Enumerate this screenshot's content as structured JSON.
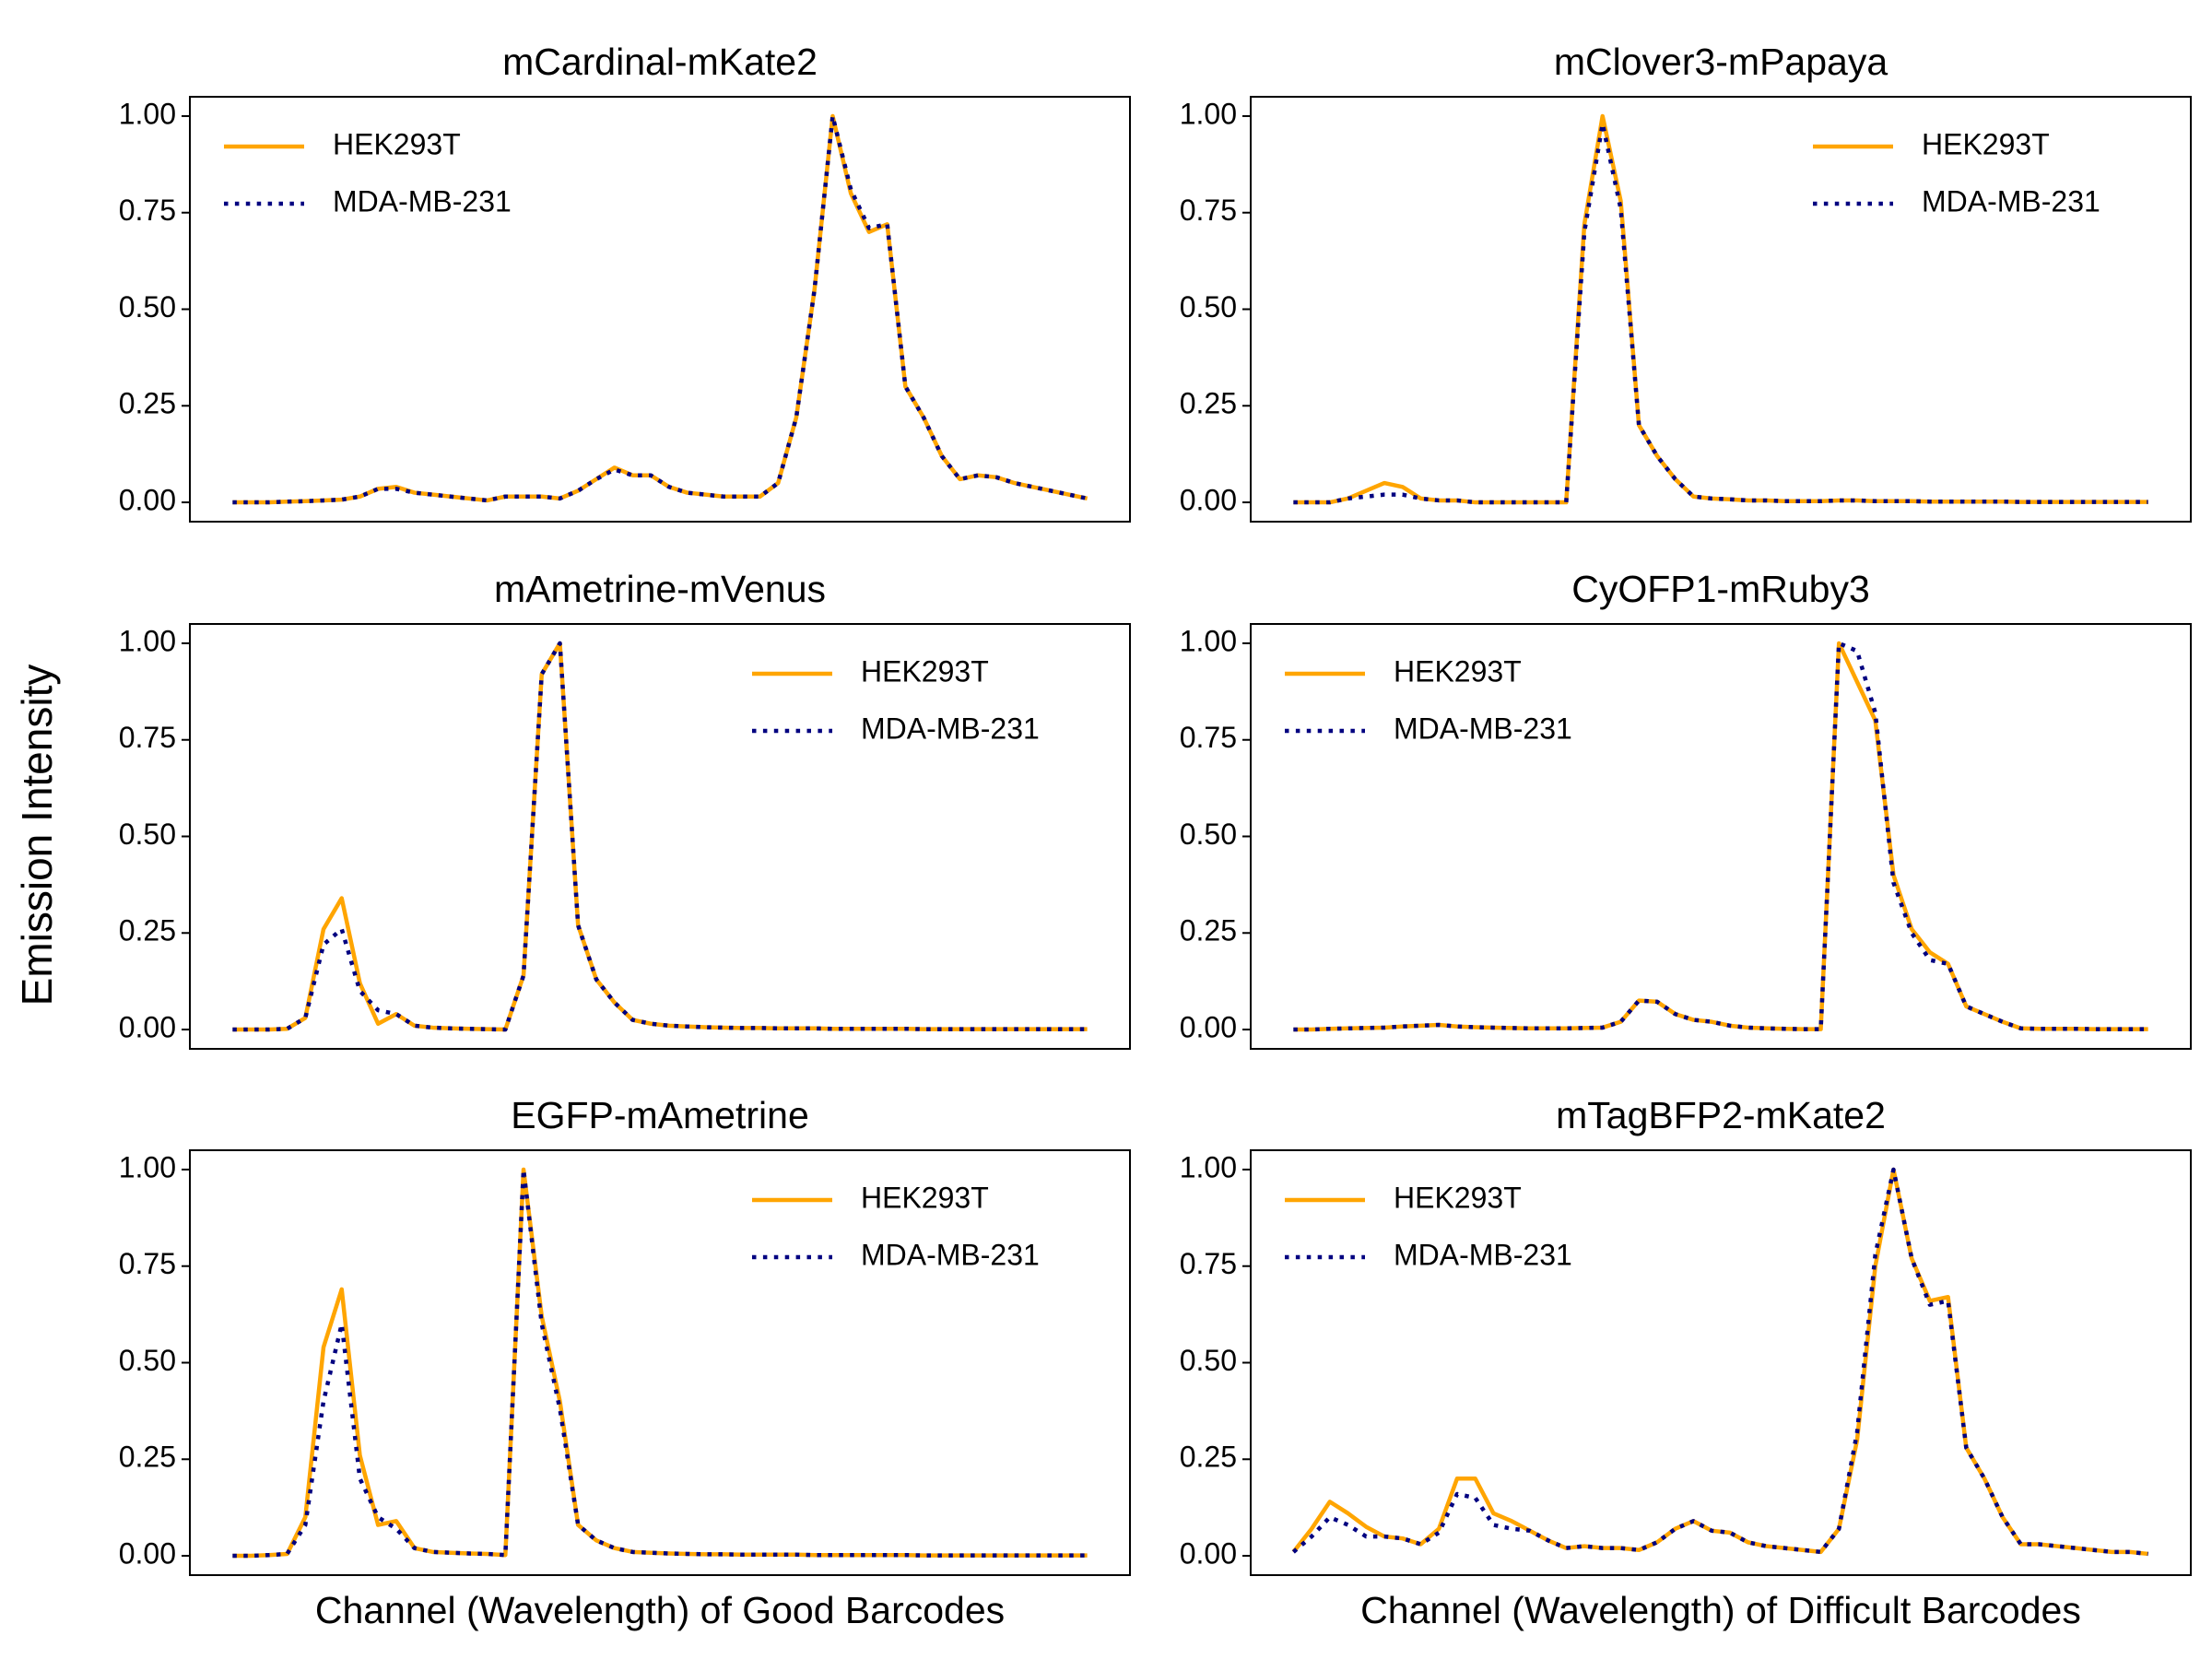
{
  "ylabel": "Emission Intensity",
  "chart_data": [
    {
      "type": "line",
      "title": "mCardinal-mKate2",
      "legend": "upper left",
      "x": [
        0,
        1,
        2,
        3,
        4,
        5,
        6,
        7,
        8,
        9,
        10,
        11,
        12,
        13,
        14,
        15,
        16,
        17,
        18,
        19,
        20,
        21,
        22,
        23,
        24,
        25,
        26,
        27,
        28,
        29,
        30,
        31,
        32,
        33,
        34,
        35,
        36,
        37,
        38,
        39,
        40,
        41,
        42,
        43,
        44,
        45,
        46,
        47
      ],
      "xlim": [
        -2.35,
        49.35
      ],
      "ylim": [
        -0.05,
        1.05
      ],
      "yticks": [
        {
          "value": 0,
          "label": "0.00"
        },
        {
          "value": 0.25,
          "label": "0.25"
        },
        {
          "value": 0.5,
          "label": "0.50"
        },
        {
          "value": 0.75,
          "label": "0.75"
        },
        {
          "value": 1,
          "label": "1.00"
        }
      ],
      "series": [
        {
          "name": "HEK293T",
          "color": "#ffa500",
          "linestyle": "solid",
          "values": [
            0,
            0,
            0,
            0.002,
            0.003,
            0.005,
            0.007,
            0.015,
            0.035,
            0.04,
            0.025,
            0.02,
            0.015,
            0.01,
            0.005,
            0.015,
            0.015,
            0.015,
            0.01,
            0.03,
            0.06,
            0.09,
            0.07,
            0.07,
            0.04,
            0.025,
            0.02,
            0.015,
            0.015,
            0.015,
            0.05,
            0.22,
            0.55,
            1.0,
            0.8,
            0.7,
            0.72,
            0.3,
            0.22,
            0.12,
            0.06,
            0.07,
            0.065,
            0.05,
            0.04,
            0.03,
            0.02,
            0.01
          ]
        },
        {
          "name": "MDA-MB-231",
          "color": "#000080",
          "linestyle": "dotted",
          "values": [
            0,
            0,
            0,
            0.002,
            0.003,
            0.005,
            0.007,
            0.015,
            0.035,
            0.035,
            0.025,
            0.02,
            0.015,
            0.01,
            0.005,
            0.015,
            0.015,
            0.015,
            0.01,
            0.03,
            0.06,
            0.085,
            0.07,
            0.07,
            0.04,
            0.025,
            0.02,
            0.015,
            0.015,
            0.015,
            0.05,
            0.22,
            0.55,
            1.0,
            0.81,
            0.71,
            0.72,
            0.3,
            0.22,
            0.12,
            0.06,
            0.07,
            0.065,
            0.05,
            0.04,
            0.03,
            0.02,
            0.01
          ]
        }
      ]
    },
    {
      "type": "line",
      "title": "mClover3-mPapaya",
      "legend": "upper right",
      "x": [
        0,
        1,
        2,
        3,
        4,
        5,
        6,
        7,
        8,
        9,
        10,
        11,
        12,
        13,
        14,
        15,
        16,
        17,
        18,
        19,
        20,
        21,
        22,
        23,
        24,
        25,
        26,
        27,
        28,
        29,
        30,
        31,
        32,
        33,
        34,
        35,
        36,
        37,
        38,
        39,
        40,
        41,
        42,
        43,
        44,
        45,
        46,
        47
      ],
      "xlim": [
        -2.35,
        49.35
      ],
      "ylim": [
        -0.05,
        1.05
      ],
      "yticks": [
        {
          "value": 0,
          "label": "0.00"
        },
        {
          "value": 0.25,
          "label": "0.25"
        },
        {
          "value": 0.5,
          "label": "0.50"
        },
        {
          "value": 0.75,
          "label": "0.75"
        },
        {
          "value": 1,
          "label": "1.00"
        }
      ],
      "series": [
        {
          "name": "HEK293T",
          "color": "#ffa500",
          "linestyle": "solid",
          "values": [
            0,
            0,
            0,
            0.01,
            0.03,
            0.05,
            0.04,
            0.01,
            0.005,
            0.005,
            0,
            0,
            0,
            0,
            0,
            0,
            0.72,
            1.0,
            0.78,
            0.2,
            0.12,
            0.06,
            0.015,
            0.01,
            0.008,
            0.005,
            0.005,
            0.003,
            0.003,
            0.003,
            0.005,
            0.005,
            0.003,
            0.003,
            0.003,
            0.002,
            0.002,
            0.002,
            0.002,
            0.002,
            0.001,
            0.001,
            0.001,
            0.001,
            0.001,
            0.001,
            0.001,
            0.001
          ]
        },
        {
          "name": "MDA-MB-231",
          "color": "#000080",
          "linestyle": "dotted",
          "values": [
            0,
            0,
            0,
            0.01,
            0.015,
            0.02,
            0.02,
            0.01,
            0.005,
            0.005,
            0,
            0,
            0,
            0,
            0,
            0,
            0.7,
            0.98,
            0.76,
            0.2,
            0.12,
            0.06,
            0.015,
            0.01,
            0.008,
            0.005,
            0.005,
            0.003,
            0.003,
            0.003,
            0.005,
            0.005,
            0.003,
            0.003,
            0.003,
            0.002,
            0.002,
            0.002,
            0.002,
            0.002,
            0.001,
            0.001,
            0.001,
            0.001,
            0.001,
            0.001,
            0.001,
            0.001
          ]
        }
      ]
    },
    {
      "type": "line",
      "title": "mAmetrine-mVenus",
      "legend": "upper right",
      "x": [
        0,
        1,
        2,
        3,
        4,
        5,
        6,
        7,
        8,
        9,
        10,
        11,
        12,
        13,
        14,
        15,
        16,
        17,
        18,
        19,
        20,
        21,
        22,
        23,
        24,
        25,
        26,
        27,
        28,
        29,
        30,
        31,
        32,
        33,
        34,
        35,
        36,
        37,
        38,
        39,
        40,
        41,
        42,
        43,
        44,
        45,
        46,
        47
      ],
      "xlim": [
        -2.35,
        49.35
      ],
      "ylim": [
        -0.05,
        1.05
      ],
      "yticks": [
        {
          "value": 0,
          "label": "0.00"
        },
        {
          "value": 0.25,
          "label": "0.25"
        },
        {
          "value": 0.5,
          "label": "0.50"
        },
        {
          "value": 0.75,
          "label": "0.75"
        },
        {
          "value": 1,
          "label": "1.00"
        }
      ],
      "series": [
        {
          "name": "HEK293T",
          "color": "#ffa500",
          "linestyle": "solid",
          "values": [
            0,
            0,
            0,
            0.002,
            0.03,
            0.26,
            0.34,
            0.12,
            0.015,
            0.04,
            0.01,
            0.005,
            0.003,
            0.002,
            0.001,
            0,
            0.14,
            0.92,
            1.0,
            0.27,
            0.13,
            0.07,
            0.025,
            0.015,
            0.01,
            0.008,
            0.006,
            0.005,
            0.004,
            0.004,
            0.003,
            0.003,
            0.003,
            0.002,
            0.002,
            0.002,
            0.002,
            0.002,
            0.001,
            0.001,
            0.001,
            0.001,
            0.001,
            0.001,
            0.001,
            0.001,
            0.001,
            0.001
          ]
        },
        {
          "name": "MDA-MB-231",
          "color": "#000080",
          "linestyle": "dotted",
          "values": [
            0,
            0,
            0,
            0.002,
            0.03,
            0.22,
            0.26,
            0.1,
            0.05,
            0.04,
            0.01,
            0.005,
            0.003,
            0.002,
            0.001,
            0,
            0.14,
            0.92,
            1.0,
            0.27,
            0.13,
            0.07,
            0.025,
            0.015,
            0.01,
            0.008,
            0.006,
            0.005,
            0.004,
            0.004,
            0.003,
            0.003,
            0.003,
            0.002,
            0.002,
            0.002,
            0.002,
            0.002,
            0.001,
            0.001,
            0.001,
            0.001,
            0.001,
            0.001,
            0.001,
            0.001,
            0.001,
            0.001
          ]
        }
      ]
    },
    {
      "type": "line",
      "title": "CyOFP1-mRuby3",
      "legend": "upper left",
      "x": [
        0,
        1,
        2,
        3,
        4,
        5,
        6,
        7,
        8,
        9,
        10,
        11,
        12,
        13,
        14,
        15,
        16,
        17,
        18,
        19,
        20,
        21,
        22,
        23,
        24,
        25,
        26,
        27,
        28,
        29,
        30,
        31,
        32,
        33,
        34,
        35,
        36,
        37,
        38,
        39,
        40,
        41,
        42,
        43,
        44,
        45,
        46,
        47
      ],
      "xlim": [
        -2.35,
        49.35
      ],
      "ylim": [
        -0.05,
        1.05
      ],
      "yticks": [
        {
          "value": 0,
          "label": "0.00"
        },
        {
          "value": 0.25,
          "label": "0.25"
        },
        {
          "value": 0.5,
          "label": "0.50"
        },
        {
          "value": 0.75,
          "label": "0.75"
        },
        {
          "value": 1,
          "label": "1.00"
        }
      ],
      "series": [
        {
          "name": "HEK293T",
          "color": "#ffa500",
          "linestyle": "solid",
          "values": [
            0,
            0,
            0.002,
            0.003,
            0.004,
            0.005,
            0.008,
            0.01,
            0.012,
            0.008,
            0.006,
            0.005,
            0.004,
            0.003,
            0.003,
            0.003,
            0.004,
            0.005,
            0.02,
            0.075,
            0.072,
            0.04,
            0.025,
            0.02,
            0.01,
            0.005,
            0.003,
            0.002,
            0.001,
            0.001,
            1.0,
            0.9,
            0.8,
            0.4,
            0.26,
            0.2,
            0.17,
            0.06,
            0.04,
            0.02,
            0.003,
            0.002,
            0.002,
            0.002,
            0.001,
            0.001,
            0.001,
            0.001
          ]
        },
        {
          "name": "MDA-MB-231",
          "color": "#000080",
          "linestyle": "dotted",
          "values": [
            0,
            0,
            0.002,
            0.003,
            0.004,
            0.005,
            0.008,
            0.01,
            0.012,
            0.008,
            0.006,
            0.005,
            0.004,
            0.003,
            0.003,
            0.003,
            0.004,
            0.005,
            0.02,
            0.075,
            0.072,
            0.04,
            0.025,
            0.02,
            0.01,
            0.005,
            0.003,
            0.002,
            0.001,
            0.001,
            1.0,
            0.98,
            0.82,
            0.38,
            0.25,
            0.18,
            0.17,
            0.06,
            0.04,
            0.02,
            0.003,
            0.002,
            0.002,
            0.002,
            0.001,
            0.001,
            0.001,
            0.001
          ]
        }
      ]
    },
    {
      "type": "line",
      "title": "EGFP-mAmetrine",
      "legend": "upper right",
      "xlabel": "Channel (Wavelength) of Good Barcodes",
      "x": [
        0,
        1,
        2,
        3,
        4,
        5,
        6,
        7,
        8,
        9,
        10,
        11,
        12,
        13,
        14,
        15,
        16,
        17,
        18,
        19,
        20,
        21,
        22,
        23,
        24,
        25,
        26,
        27,
        28,
        29,
        30,
        31,
        32,
        33,
        34,
        35,
        36,
        37,
        38,
        39,
        40,
        41,
        42,
        43,
        44,
        45,
        46,
        47
      ],
      "xlim": [
        -2.35,
        49.35
      ],
      "ylim": [
        -0.05,
        1.05
      ],
      "yticks": [
        {
          "value": 0,
          "label": "0.00"
        },
        {
          "value": 0.25,
          "label": "0.25"
        },
        {
          "value": 0.5,
          "label": "0.50"
        },
        {
          "value": 0.75,
          "label": "0.75"
        },
        {
          "value": 1,
          "label": "1.00"
        }
      ],
      "series": [
        {
          "name": "HEK293T",
          "color": "#ffa500",
          "linestyle": "solid",
          "values": [
            0,
            0,
            0.002,
            0.005,
            0.1,
            0.54,
            0.69,
            0.26,
            0.08,
            0.09,
            0.02,
            0.01,
            0.008,
            0.006,
            0.005,
            0.002,
            1.0,
            0.62,
            0.4,
            0.08,
            0.04,
            0.02,
            0.01,
            0.008,
            0.006,
            0.005,
            0.004,
            0.004,
            0.003,
            0.003,
            0.003,
            0.003,
            0.002,
            0.002,
            0.002,
            0.002,
            0.002,
            0.002,
            0.001,
            0.001,
            0.001,
            0.001,
            0.001,
            0.001,
            0.001,
            0.001,
            0.001,
            0.001
          ]
        },
        {
          "name": "MDA-MB-231",
          "color": "#000080",
          "linestyle": "dotted",
          "values": [
            0,
            0,
            0.002,
            0.005,
            0.08,
            0.4,
            0.6,
            0.2,
            0.1,
            0.07,
            0.02,
            0.01,
            0.008,
            0.006,
            0.005,
            0.002,
            1.0,
            0.6,
            0.38,
            0.08,
            0.04,
            0.02,
            0.01,
            0.008,
            0.006,
            0.005,
            0.004,
            0.004,
            0.003,
            0.003,
            0.003,
            0.003,
            0.002,
            0.002,
            0.002,
            0.002,
            0.002,
            0.002,
            0.001,
            0.001,
            0.001,
            0.001,
            0.001,
            0.001,
            0.001,
            0.001,
            0.001,
            0.001
          ]
        }
      ]
    },
    {
      "type": "line",
      "title": "mTagBFP2-mKate2",
      "legend": "upper left",
      "xlabel": "Channel (Wavelength) of Difficult Barcodes",
      "x": [
        0,
        1,
        2,
        3,
        4,
        5,
        6,
        7,
        8,
        9,
        10,
        11,
        12,
        13,
        14,
        15,
        16,
        17,
        18,
        19,
        20,
        21,
        22,
        23,
        24,
        25,
        26,
        27,
        28,
        29,
        30,
        31,
        32,
        33,
        34,
        35,
        36,
        37,
        38,
        39,
        40,
        41,
        42,
        43,
        44,
        45,
        46,
        47
      ],
      "xlim": [
        -2.35,
        49.35
      ],
      "ylim": [
        -0.05,
        1.05
      ],
      "yticks": [
        {
          "value": 0,
          "label": "0.00"
        },
        {
          "value": 0.25,
          "label": "0.25"
        },
        {
          "value": 0.5,
          "label": "0.50"
        },
        {
          "value": 0.75,
          "label": "0.75"
        },
        {
          "value": 1,
          "label": "1.00"
        }
      ],
      "series": [
        {
          "name": "HEK293T",
          "color": "#ffa500",
          "linestyle": "solid",
          "values": [
            0.01,
            0.07,
            0.14,
            0.11,
            0.075,
            0.05,
            0.045,
            0.03,
            0.07,
            0.2,
            0.2,
            0.11,
            0.09,
            0.065,
            0.04,
            0.02,
            0.025,
            0.02,
            0.02,
            0.015,
            0.035,
            0.07,
            0.09,
            0.065,
            0.06,
            0.035,
            0.025,
            0.02,
            0.015,
            0.01,
            0.07,
            0.3,
            0.75,
            1.0,
            0.77,
            0.66,
            0.67,
            0.28,
            0.2,
            0.1,
            0.03,
            0.03,
            0.025,
            0.02,
            0.015,
            0.01,
            0.01,
            0.005
          ]
        },
        {
          "name": "MDA-MB-231",
          "color": "#000080",
          "linestyle": "dotted",
          "values": [
            0.01,
            0.05,
            0.1,
            0.08,
            0.05,
            0.05,
            0.045,
            0.03,
            0.06,
            0.16,
            0.15,
            0.08,
            0.07,
            0.065,
            0.04,
            0.02,
            0.025,
            0.02,
            0.02,
            0.015,
            0.035,
            0.07,
            0.09,
            0.065,
            0.06,
            0.035,
            0.025,
            0.02,
            0.015,
            0.01,
            0.07,
            0.32,
            0.78,
            1.0,
            0.77,
            0.65,
            0.66,
            0.28,
            0.2,
            0.1,
            0.03,
            0.03,
            0.025,
            0.02,
            0.015,
            0.01,
            0.01,
            0.005
          ]
        }
      ]
    }
  ]
}
